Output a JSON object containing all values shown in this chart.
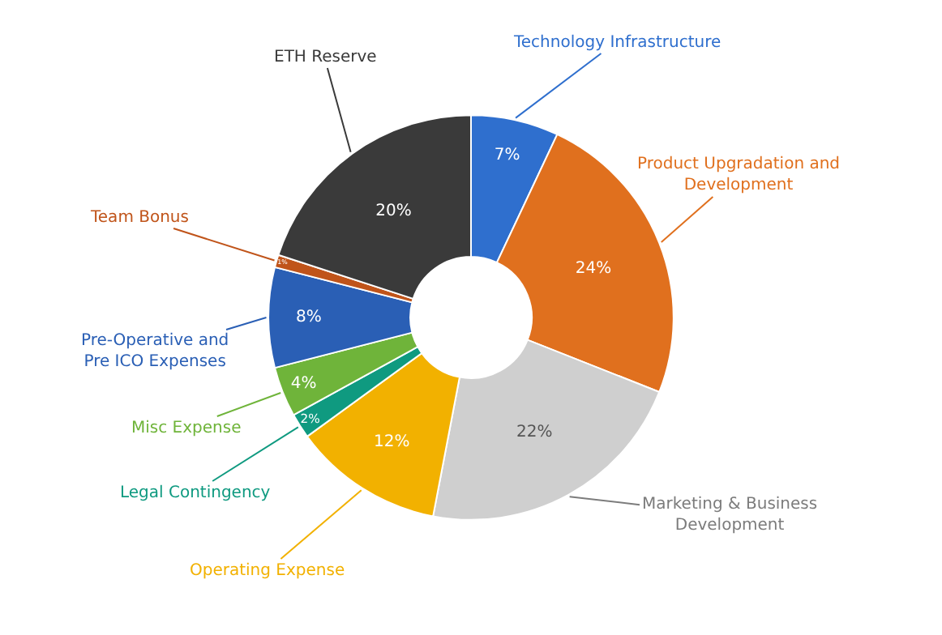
{
  "chart_data": {
    "type": "donut",
    "categories": [
      "Technology Infrastructure",
      "Product Upgradation and Development",
      "Marketing & Business Development",
      "Operating Expense",
      "Legal Contingency",
      "Misc Expense",
      "Pre-Operative and Pre ICO Expenses",
      "Team Bonus",
      "ETH Reserve"
    ],
    "values": [
      7,
      24,
      22,
      12,
      2,
      4,
      8,
      1,
      20
    ],
    "value_labels": [
      "7%",
      "24%",
      "22%",
      "12%",
      "2%",
      "4%",
      "8%",
      "1%",
      "20%"
    ],
    "colors": [
      "#2f6fce",
      "#e0701e",
      "#cfcfcf",
      "#f2b100",
      "#0f9a80",
      "#6fb43a",
      "#2a5fb5",
      "#c0541a",
      "#3a3a3a"
    ],
    "legend": false
  }
}
